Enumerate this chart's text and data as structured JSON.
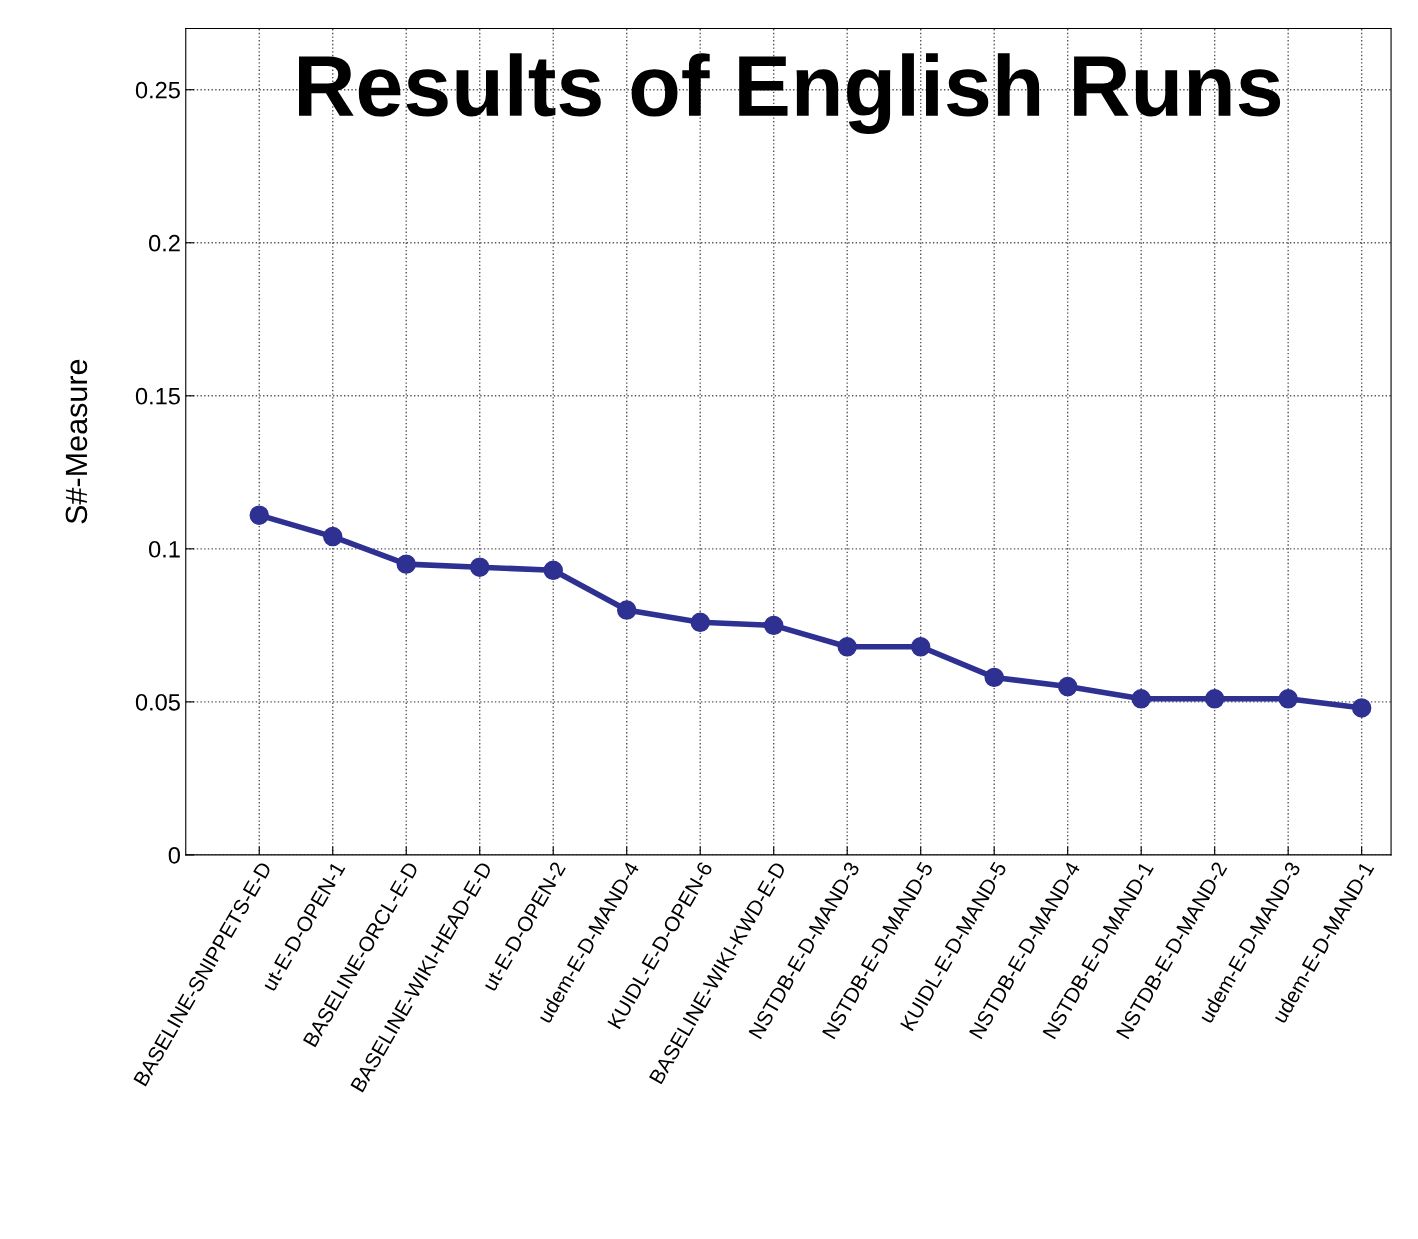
{
  "chart_data": {
    "type": "line",
    "title": "Results of English Runs",
    "ylabel": "S#-Measure",
    "categories": [
      "BASELINE-SNIPPETS-E-D",
      "ut-E-D-OPEN-1",
      "BASELINE-ORCL-E-D",
      "BASELINE-WIKI-HEAD-E-D",
      "ut-E-D-OPEN-2",
      "udem-E-D-MAND-4",
      "KUIDL-E-D-OPEN-6",
      "BASELINE-WIKI-KWD-E-D",
      "NSTDB-E-D-MAND-3",
      "NSTDB-E-D-MAND-5",
      "KUIDL-E-D-MAND-5",
      "NSTDB-E-D-MAND-4",
      "NSTDB-E-D-MAND-1",
      "NSTDB-E-D-MAND-2",
      "udem-E-D-MAND-3",
      "udem-E-D-MAND-1"
    ],
    "series": [
      {
        "color": "#2e3192",
        "values": [
          0.111,
          0.104,
          0.095,
          0.094,
          0.093,
          0.08,
          0.076,
          0.075,
          0.068,
          0.068,
          0.058,
          0.055,
          0.051,
          0.051,
          0.051,
          0.048
        ]
      }
    ],
    "ylim": [
      0,
      0.27
    ],
    "yticks": [
      0,
      0.05,
      {
        "value": 0.1,
        "label": "0.1"
      },
      0.15,
      {
        "value": 0.2,
        "label": "0.2"
      },
      0.25
    ],
    "grid": true,
    "marker": "circle",
    "line_style": "solid"
  }
}
